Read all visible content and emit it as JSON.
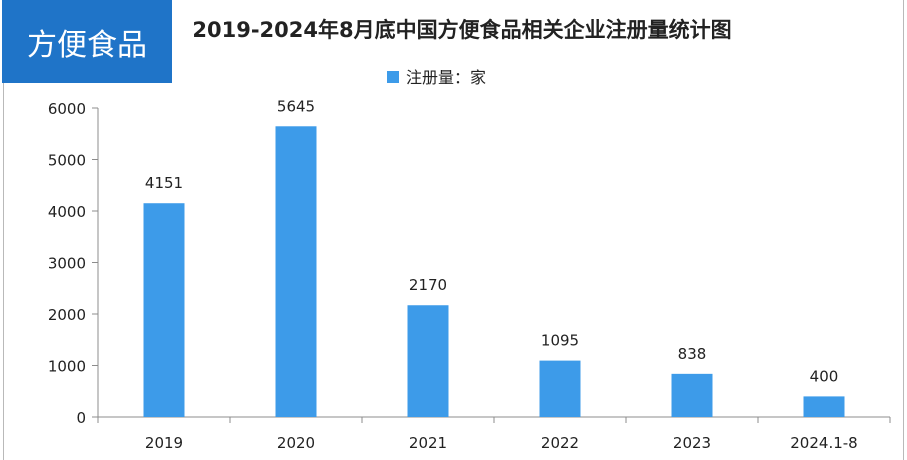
{
  "tag_label": "方便食品",
  "chart_data": {
    "type": "bar",
    "title": "2019-2024年8月底中国方便食品相关企业注册量统计图",
    "categories": [
      "2019",
      "2020",
      "2021",
      "2022",
      "2023",
      "2024.1-8"
    ],
    "series": [
      {
        "name": "注册量：家",
        "values": [
          4151,
          5645,
          2170,
          1095,
          838,
          400
        ]
      }
    ],
    "data_labels": [
      "4151",
      "5645",
      "2170",
      "1095",
      "838",
      "400"
    ],
    "yticks": [
      "0",
      "1000",
      "2000",
      "3000",
      "4000",
      "5000",
      "6000"
    ],
    "ylim": [
      0,
      6000
    ],
    "xlabel": "",
    "ylabel": "",
    "grid": false,
    "legend_position": "top-center",
    "bar_color": "#3d9be9"
  }
}
